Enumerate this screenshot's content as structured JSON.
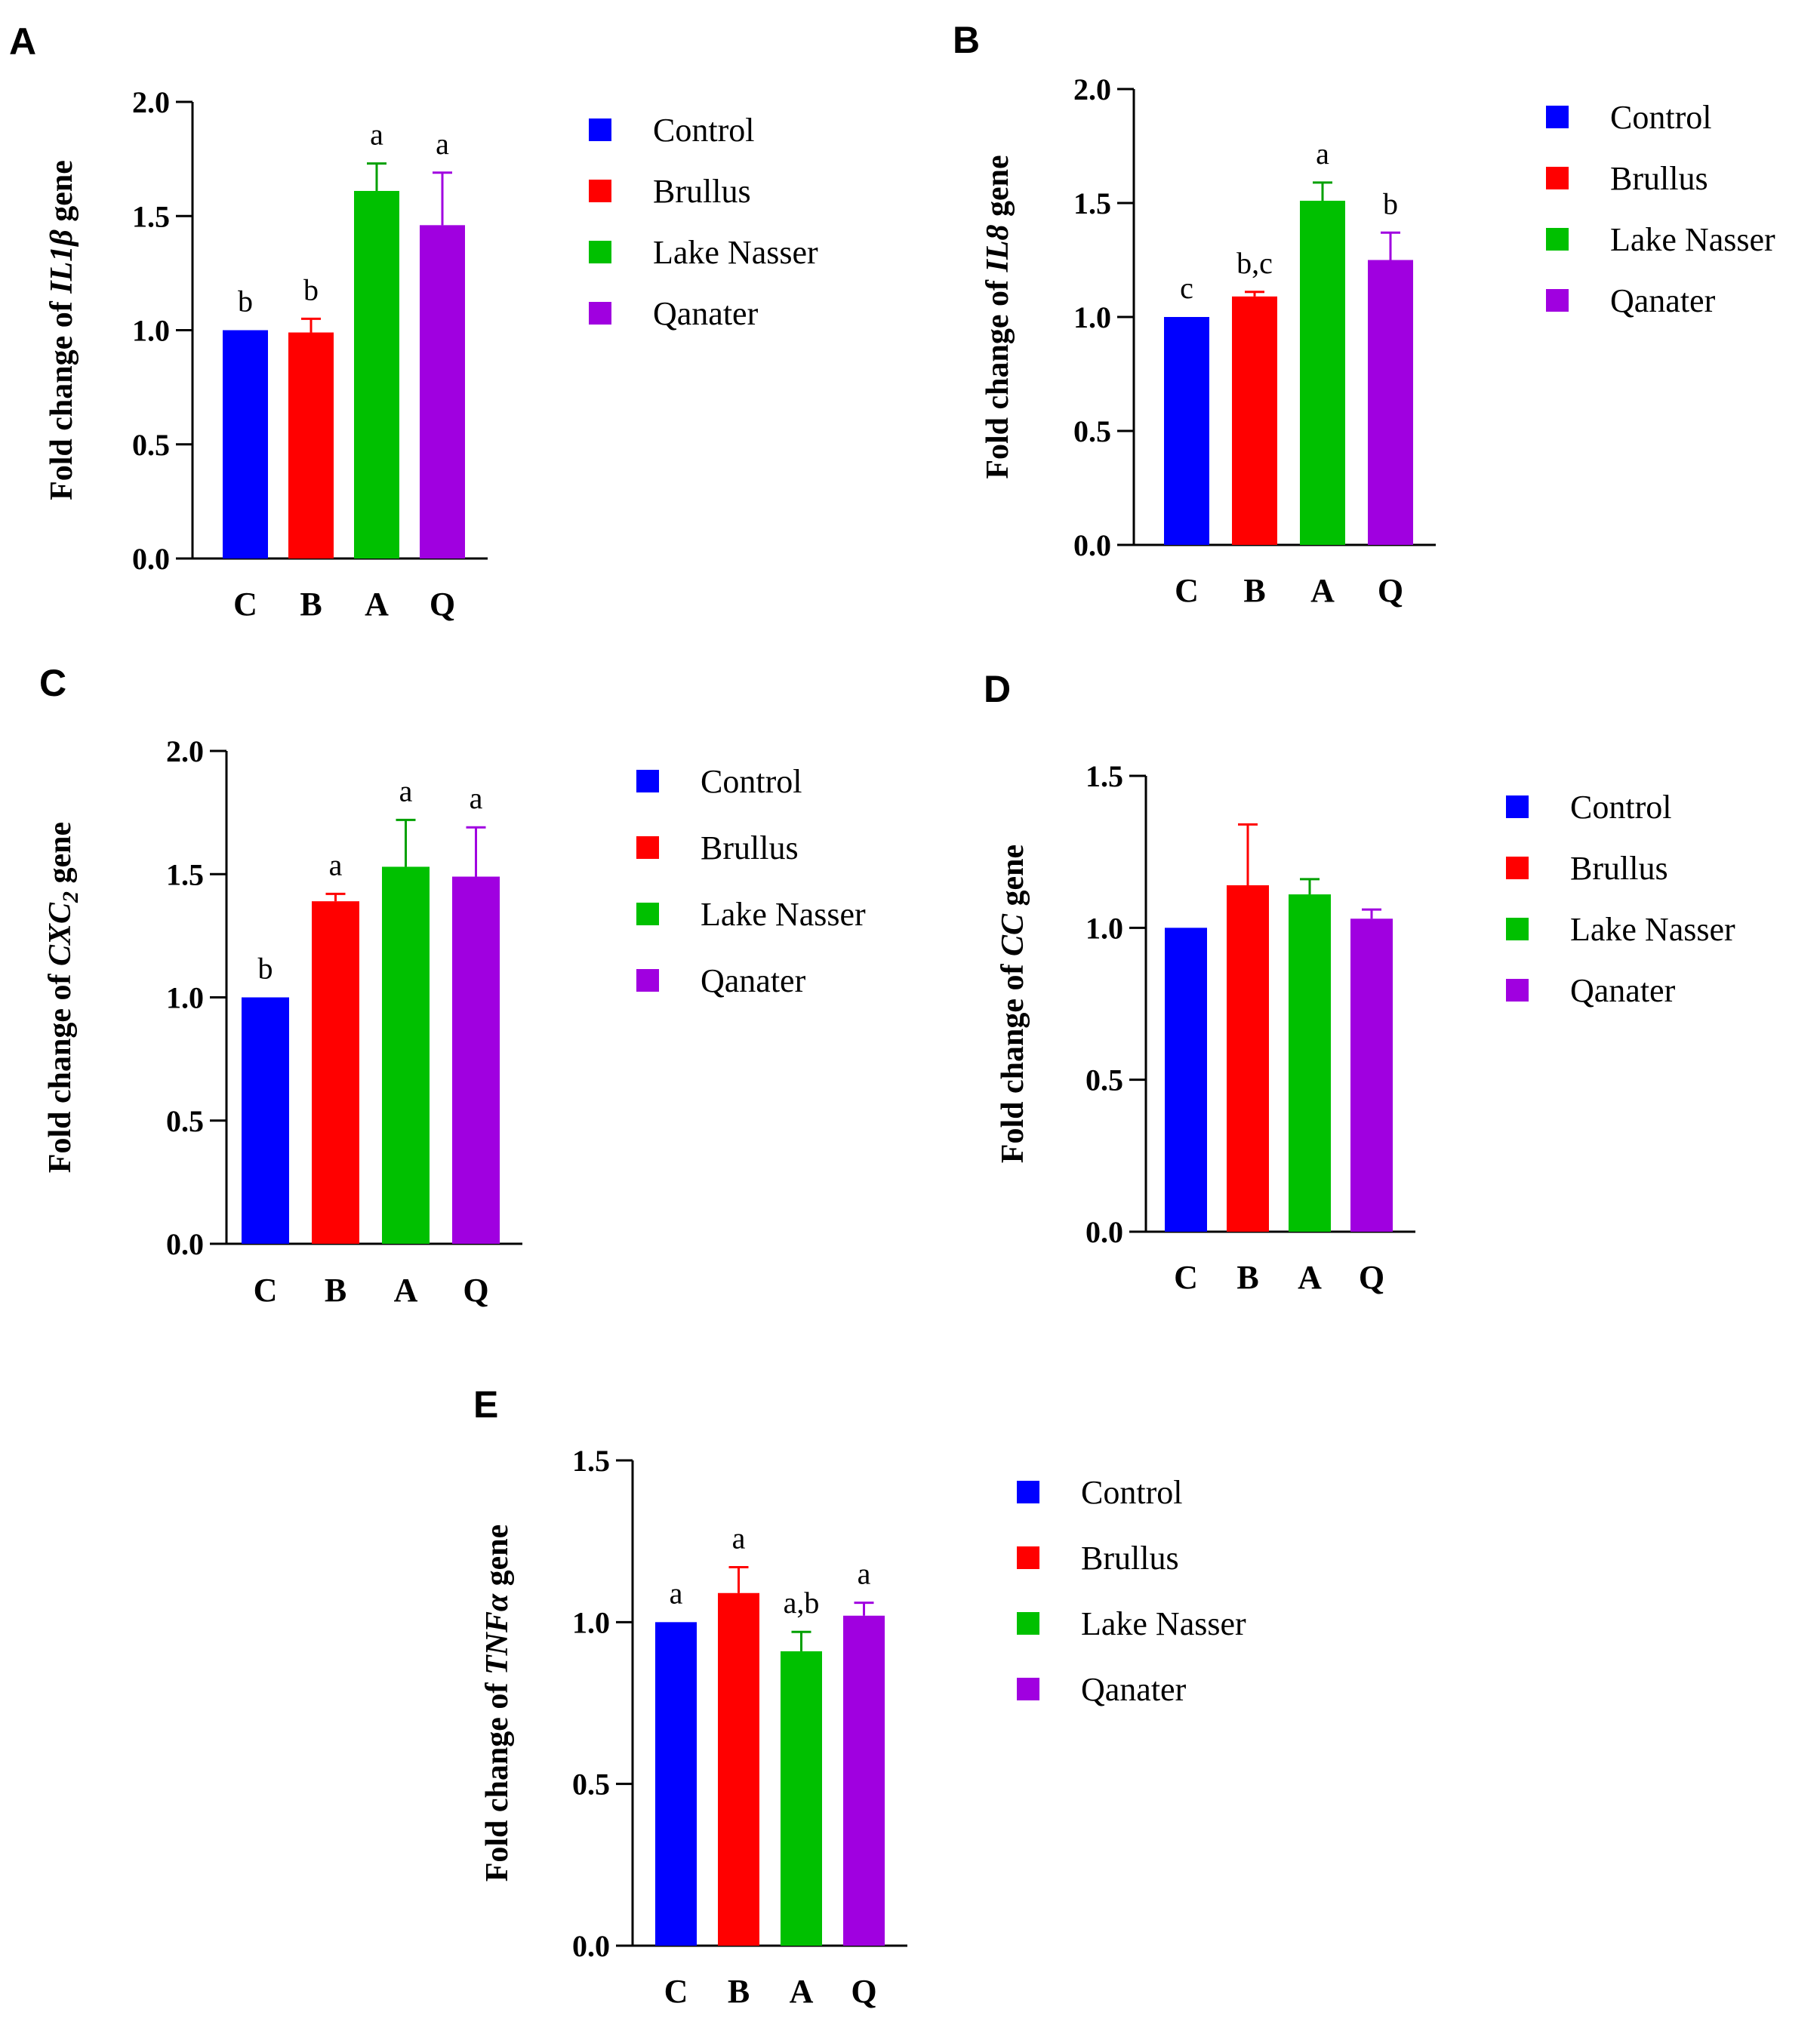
{
  "chart_data": [
    {
      "panel": "A",
      "type": "bar",
      "categories": [
        "C",
        "B",
        "A",
        "Q"
      ],
      "values": [
        1.0,
        0.99,
        1.61,
        1.46
      ],
      "errors": [
        0.0,
        0.06,
        0.12,
        0.23
      ],
      "significance": [
        "b",
        "b",
        "a",
        "a"
      ],
      "ylabel": {
        "prefix": "Fold change of ",
        "gene": "IL1β",
        "sub": "",
        "suffix": " gene"
      },
      "ylim": [
        0,
        2.0
      ],
      "yticks": [
        "0.0",
        "0.5",
        "1.0",
        "1.5",
        "2.0"
      ],
      "tick_step": 0.5
    },
    {
      "panel": "B",
      "type": "bar",
      "categories": [
        "C",
        "B",
        "A",
        "Q"
      ],
      "values": [
        1.0,
        1.09,
        1.51,
        1.25
      ],
      "errors": [
        0.0,
        0.02,
        0.08,
        0.12
      ],
      "significance": [
        "c",
        "b,c",
        "a",
        "b"
      ],
      "ylabel": {
        "prefix": "Fold change of ",
        "gene": "IL8",
        "sub": "",
        "suffix": " gene"
      },
      "ylim": [
        0,
        2.0
      ],
      "yticks": [
        "0.0",
        "0.5",
        "1.0",
        "1.5",
        "2.0"
      ],
      "tick_step": 0.5
    },
    {
      "panel": "C",
      "type": "bar",
      "categories": [
        "C",
        "B",
        "A",
        "Q"
      ],
      "values": [
        1.0,
        1.39,
        1.53,
        1.49
      ],
      "errors": [
        0.0,
        0.03,
        0.19,
        0.2
      ],
      "significance": [
        "b",
        "a",
        "a",
        "a"
      ],
      "ylabel": {
        "prefix": "Fold change of ",
        "gene": "CXC",
        "sub": "2",
        "suffix": " gene"
      },
      "ylim": [
        0,
        2.0
      ],
      "yticks": [
        "0.0",
        "0.5",
        "1.0",
        "1.5",
        "2.0"
      ],
      "tick_step": 0.5
    },
    {
      "panel": "D",
      "type": "bar",
      "categories": [
        "C",
        "B",
        "A",
        "Q"
      ],
      "values": [
        1.0,
        1.14,
        1.11,
        1.03
      ],
      "errors": [
        0.0,
        0.2,
        0.05,
        0.03
      ],
      "significance": [
        "",
        "",
        "",
        ""
      ],
      "ylabel": {
        "prefix": "Fold change of ",
        "gene": "CC",
        "sub": "",
        "suffix": " gene"
      },
      "ylim": [
        0,
        1.5
      ],
      "yticks": [
        "0.0",
        "0.5",
        "1.0",
        "1.5"
      ],
      "tick_step": 0.5
    },
    {
      "panel": "E",
      "type": "bar",
      "categories": [
        "C",
        "B",
        "A",
        "Q"
      ],
      "values": [
        1.0,
        1.09,
        0.91,
        1.02
      ],
      "errors": [
        0.0,
        0.08,
        0.06,
        0.04
      ],
      "significance": [
        "a",
        "a",
        "a,b",
        "a"
      ],
      "ylabel": {
        "prefix": "Fold change of ",
        "gene": "TNFα",
        "sub": "",
        "suffix": " gene"
      },
      "ylim": [
        0,
        1.5
      ],
      "yticks": [
        "0.0",
        "0.5",
        "1.0",
        "1.5"
      ],
      "tick_step": 0.5
    }
  ],
  "legend": [
    "Control",
    "Brullus",
    "Lake Nasser",
    "Qanater"
  ],
  "colors": [
    "#0000ff",
    "#ff0000",
    "#00c000",
    "#a000e0"
  ],
  "error_colors": [
    "#0000ff",
    "#ff0000",
    "#00a000",
    "#a000e0"
  ]
}
